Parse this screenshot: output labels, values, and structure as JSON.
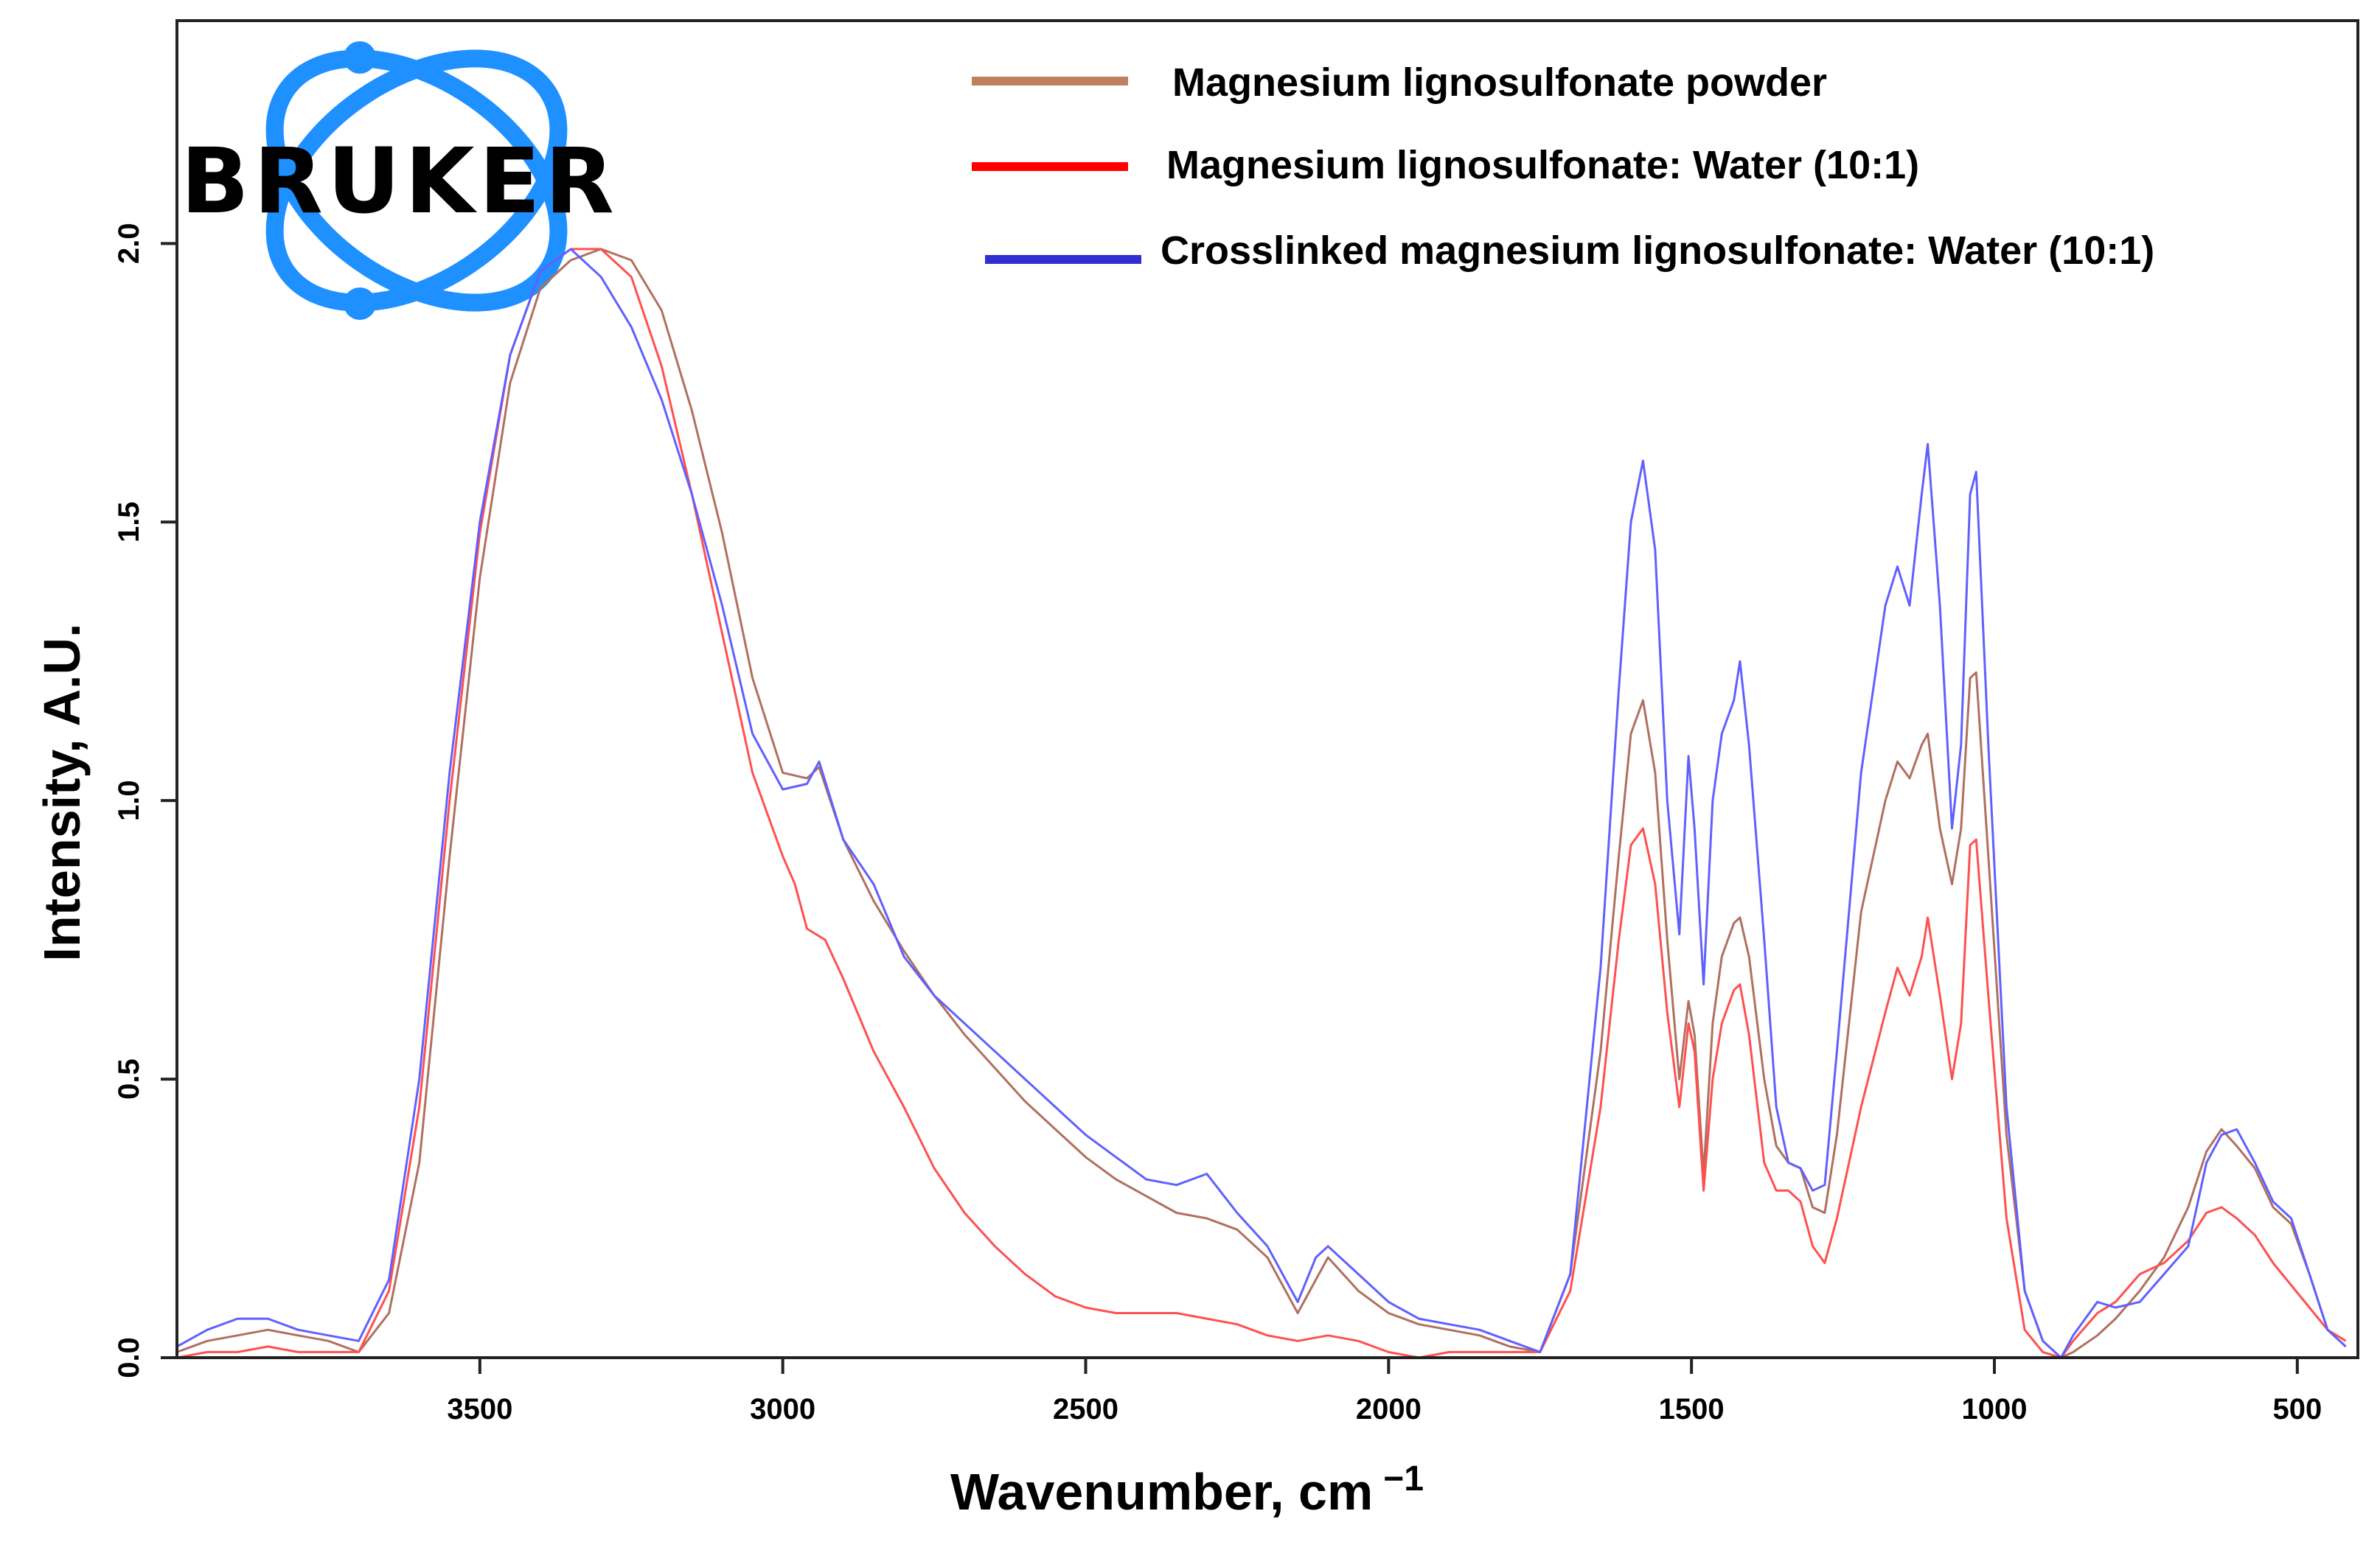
{
  "chart_data": {
    "type": "line",
    "title": "",
    "xlabel": "Wavenumber, cm",
    "xlabel_superscript": "−1",
    "ylabel": "Intensity, A.U.",
    "xlim": [
      4000,
      400
    ],
    "ylim": [
      0,
      2.4
    ],
    "x_ticks": [
      3500,
      3000,
      2500,
      2000,
      1500,
      1000,
      500
    ],
    "y_ticks": [
      "0.0",
      "0.5",
      "1.0",
      "1.5",
      "2.0"
    ],
    "y_tick_values": [
      0,
      0.5,
      1.0,
      1.5,
      2.0
    ],
    "legend_position": "top-right",
    "logo_text": "BRUKER",
    "series": [
      {
        "name": "Magnesium lignosulfonate powder",
        "color": "#b07060",
        "legend_color": "#c08060",
        "points": [
          [
            4000,
            0.01
          ],
          [
            3950,
            0.03
          ],
          [
            3900,
            0.04
          ],
          [
            3850,
            0.05
          ],
          [
            3800,
            0.04
          ],
          [
            3750,
            0.03
          ],
          [
            3700,
            0.01
          ],
          [
            3650,
            0.08
          ],
          [
            3600,
            0.35
          ],
          [
            3550,
            0.9
          ],
          [
            3500,
            1.4
          ],
          [
            3450,
            1.75
          ],
          [
            3400,
            1.92
          ],
          [
            3350,
            1.97
          ],
          [
            3300,
            1.99
          ],
          [
            3250,
            1.97
          ],
          [
            3200,
            1.88
          ],
          [
            3150,
            1.7
          ],
          [
            3100,
            1.48
          ],
          [
            3050,
            1.22
          ],
          [
            3000,
            1.05
          ],
          [
            2960,
            1.04
          ],
          [
            2940,
            1.06
          ],
          [
            2900,
            0.93
          ],
          [
            2850,
            0.82
          ],
          [
            2800,
            0.73
          ],
          [
            2750,
            0.65
          ],
          [
            2700,
            0.58
          ],
          [
            2650,
            0.52
          ],
          [
            2600,
            0.46
          ],
          [
            2550,
            0.41
          ],
          [
            2500,
            0.36
          ],
          [
            2450,
            0.32
          ],
          [
            2400,
            0.29
          ],
          [
            2350,
            0.26
          ],
          [
            2300,
            0.25
          ],
          [
            2250,
            0.23
          ],
          [
            2200,
            0.18
          ],
          [
            2150,
            0.08
          ],
          [
            2120,
            0.14
          ],
          [
            2100,
            0.18
          ],
          [
            2050,
            0.12
          ],
          [
            2000,
            0.08
          ],
          [
            1950,
            0.06
          ],
          [
            1900,
            0.05
          ],
          [
            1850,
            0.04
          ],
          [
            1800,
            0.02
          ],
          [
            1750,
            0.01
          ],
          [
            1700,
            0.15
          ],
          [
            1650,
            0.55
          ],
          [
            1620,
            0.9
          ],
          [
            1600,
            1.12
          ],
          [
            1580,
            1.18
          ],
          [
            1560,
            1.05
          ],
          [
            1540,
            0.75
          ],
          [
            1520,
            0.5
          ],
          [
            1505,
            0.64
          ],
          [
            1495,
            0.58
          ],
          [
            1480,
            0.33
          ],
          [
            1465,
            0.6
          ],
          [
            1450,
            0.72
          ],
          [
            1430,
            0.78
          ],
          [
            1420,
            0.79
          ],
          [
            1405,
            0.72
          ],
          [
            1380,
            0.5
          ],
          [
            1360,
            0.38
          ],
          [
            1340,
            0.35
          ],
          [
            1320,
            0.34
          ],
          [
            1300,
            0.27
          ],
          [
            1280,
            0.26
          ],
          [
            1260,
            0.4
          ],
          [
            1220,
            0.8
          ],
          [
            1180,
            1.0
          ],
          [
            1160,
            1.07
          ],
          [
            1140,
            1.04
          ],
          [
            1120,
            1.1
          ],
          [
            1110,
            1.12
          ],
          [
            1090,
            0.95
          ],
          [
            1070,
            0.85
          ],
          [
            1055,
            0.95
          ],
          [
            1040,
            1.22
          ],
          [
            1030,
            1.23
          ],
          [
            1010,
            0.9
          ],
          [
            980,
            0.4
          ],
          [
            950,
            0.12
          ],
          [
            920,
            0.03
          ],
          [
            890,
            0.0
          ],
          [
            870,
            0.01
          ],
          [
            830,
            0.04
          ],
          [
            800,
            0.07
          ],
          [
            760,
            0.12
          ],
          [
            720,
            0.18
          ],
          [
            680,
            0.27
          ],
          [
            650,
            0.37
          ],
          [
            625,
            0.41
          ],
          [
            600,
            0.38
          ],
          [
            570,
            0.34
          ],
          [
            540,
            0.27
          ],
          [
            510,
            0.24
          ],
          [
            480,
            0.15
          ],
          [
            450,
            0.05
          ],
          [
            420,
            0.02
          ]
        ]
      },
      {
        "name": "Magnesium lignosulfonate: Water (10:1)",
        "color": "#ff5050",
        "legend_color": "#ff0000",
        "points": [
          [
            4000,
            0.0
          ],
          [
            3950,
            0.01
          ],
          [
            3900,
            0.01
          ],
          [
            3850,
            0.02
          ],
          [
            3800,
            0.01
          ],
          [
            3750,
            0.01
          ],
          [
            3700,
            0.01
          ],
          [
            3650,
            0.12
          ],
          [
            3600,
            0.45
          ],
          [
            3550,
            1.0
          ],
          [
            3500,
            1.48
          ],
          [
            3450,
            1.8
          ],
          [
            3400,
            1.95
          ],
          [
            3350,
            1.99
          ],
          [
            3300,
            1.99
          ],
          [
            3250,
            1.94
          ],
          [
            3200,
            1.78
          ],
          [
            3150,
            1.55
          ],
          [
            3100,
            1.3
          ],
          [
            3050,
            1.05
          ],
          [
            3000,
            0.9
          ],
          [
            2980,
            0.85
          ],
          [
            2960,
            0.77
          ],
          [
            2930,
            0.75
          ],
          [
            2900,
            0.68
          ],
          [
            2850,
            0.55
          ],
          [
            2800,
            0.45
          ],
          [
            2750,
            0.34
          ],
          [
            2700,
            0.26
          ],
          [
            2650,
            0.2
          ],
          [
            2600,
            0.15
          ],
          [
            2550,
            0.11
          ],
          [
            2500,
            0.09
          ],
          [
            2450,
            0.08
          ],
          [
            2400,
            0.08
          ],
          [
            2350,
            0.08
          ],
          [
            2300,
            0.07
          ],
          [
            2250,
            0.06
          ],
          [
            2200,
            0.04
          ],
          [
            2150,
            0.03
          ],
          [
            2100,
            0.04
          ],
          [
            2050,
            0.03
          ],
          [
            2000,
            0.01
          ],
          [
            1950,
            0.0
          ],
          [
            1900,
            0.01
          ],
          [
            1850,
            0.01
          ],
          [
            1800,
            0.01
          ],
          [
            1750,
            0.01
          ],
          [
            1700,
            0.12
          ],
          [
            1650,
            0.45
          ],
          [
            1620,
            0.75
          ],
          [
            1600,
            0.92
          ],
          [
            1580,
            0.95
          ],
          [
            1560,
            0.85
          ],
          [
            1540,
            0.62
          ],
          [
            1520,
            0.45
          ],
          [
            1505,
            0.6
          ],
          [
            1495,
            0.55
          ],
          [
            1480,
            0.3
          ],
          [
            1465,
            0.5
          ],
          [
            1450,
            0.6
          ],
          [
            1430,
            0.66
          ],
          [
            1420,
            0.67
          ],
          [
            1405,
            0.58
          ],
          [
            1380,
            0.35
          ],
          [
            1360,
            0.3
          ],
          [
            1340,
            0.3
          ],
          [
            1320,
            0.28
          ],
          [
            1300,
            0.2
          ],
          [
            1280,
            0.17
          ],
          [
            1260,
            0.25
          ],
          [
            1220,
            0.45
          ],
          [
            1180,
            0.62
          ],
          [
            1160,
            0.7
          ],
          [
            1140,
            0.65
          ],
          [
            1120,
            0.72
          ],
          [
            1110,
            0.79
          ],
          [
            1090,
            0.65
          ],
          [
            1070,
            0.5
          ],
          [
            1055,
            0.6
          ],
          [
            1040,
            0.92
          ],
          [
            1030,
            0.93
          ],
          [
            1010,
            0.65
          ],
          [
            980,
            0.25
          ],
          [
            950,
            0.05
          ],
          [
            920,
            0.01
          ],
          [
            890,
            0.0
          ],
          [
            870,
            0.03
          ],
          [
            830,
            0.08
          ],
          [
            800,
            0.1
          ],
          [
            760,
            0.15
          ],
          [
            720,
            0.17
          ],
          [
            680,
            0.21
          ],
          [
            650,
            0.26
          ],
          [
            625,
            0.27
          ],
          [
            600,
            0.25
          ],
          [
            570,
            0.22
          ],
          [
            540,
            0.17
          ],
          [
            510,
            0.13
          ],
          [
            480,
            0.09
          ],
          [
            450,
            0.05
          ],
          [
            420,
            0.03
          ]
        ]
      },
      {
        "name": "Crosslinked magnesium lignosulfonate: Water (10:1)",
        "color": "#6060ff",
        "legend_color": "#3030d0",
        "points": [
          [
            4000,
            0.02
          ],
          [
            3950,
            0.05
          ],
          [
            3900,
            0.07
          ],
          [
            3850,
            0.07
          ],
          [
            3800,
            0.05
          ],
          [
            3750,
            0.04
          ],
          [
            3700,
            0.03
          ],
          [
            3650,
            0.14
          ],
          [
            3600,
            0.5
          ],
          [
            3550,
            1.05
          ],
          [
            3500,
            1.5
          ],
          [
            3450,
            1.8
          ],
          [
            3400,
            1.95
          ],
          [
            3350,
            1.99
          ],
          [
            3300,
            1.94
          ],
          [
            3250,
            1.85
          ],
          [
            3200,
            1.72
          ],
          [
            3150,
            1.55
          ],
          [
            3100,
            1.35
          ],
          [
            3050,
            1.12
          ],
          [
            3000,
            1.02
          ],
          [
            2960,
            1.03
          ],
          [
            2940,
            1.07
          ],
          [
            2900,
            0.93
          ],
          [
            2850,
            0.85
          ],
          [
            2800,
            0.72
          ],
          [
            2750,
            0.65
          ],
          [
            2700,
            0.6
          ],
          [
            2650,
            0.55
          ],
          [
            2600,
            0.5
          ],
          [
            2550,
            0.45
          ],
          [
            2500,
            0.4
          ],
          [
            2450,
            0.36
          ],
          [
            2400,
            0.32
          ],
          [
            2350,
            0.31
          ],
          [
            2300,
            0.33
          ],
          [
            2250,
            0.26
          ],
          [
            2200,
            0.2
          ],
          [
            2150,
            0.1
          ],
          [
            2120,
            0.18
          ],
          [
            2100,
            0.2
          ],
          [
            2050,
            0.15
          ],
          [
            2000,
            0.1
          ],
          [
            1950,
            0.07
          ],
          [
            1900,
            0.06
          ],
          [
            1850,
            0.05
          ],
          [
            1800,
            0.03
          ],
          [
            1750,
            0.01
          ],
          [
            1700,
            0.15
          ],
          [
            1650,
            0.7
          ],
          [
            1620,
            1.2
          ],
          [
            1600,
            1.5
          ],
          [
            1580,
            1.61
          ],
          [
            1560,
            1.45
          ],
          [
            1540,
            1.0
          ],
          [
            1520,
            0.76
          ],
          [
            1505,
            1.08
          ],
          [
            1495,
            0.95
          ],
          [
            1480,
            0.67
          ],
          [
            1465,
            1.0
          ],
          [
            1450,
            1.12
          ],
          [
            1430,
            1.18
          ],
          [
            1420,
            1.25
          ],
          [
            1405,
            1.1
          ],
          [
            1380,
            0.75
          ],
          [
            1360,
            0.45
          ],
          [
            1340,
            0.35
          ],
          [
            1320,
            0.34
          ],
          [
            1300,
            0.3
          ],
          [
            1280,
            0.31
          ],
          [
            1260,
            0.55
          ],
          [
            1220,
            1.05
          ],
          [
            1180,
            1.35
          ],
          [
            1160,
            1.42
          ],
          [
            1140,
            1.35
          ],
          [
            1120,
            1.55
          ],
          [
            1110,
            1.64
          ],
          [
            1090,
            1.35
          ],
          [
            1070,
            0.95
          ],
          [
            1055,
            1.1
          ],
          [
            1040,
            1.55
          ],
          [
            1030,
            1.59
          ],
          [
            1010,
            1.1
          ],
          [
            980,
            0.45
          ],
          [
            950,
            0.12
          ],
          [
            920,
            0.03
          ],
          [
            890,
            0.0
          ],
          [
            870,
            0.04
          ],
          [
            830,
            0.1
          ],
          [
            800,
            0.09
          ],
          [
            760,
            0.1
          ],
          [
            720,
            0.15
          ],
          [
            680,
            0.2
          ],
          [
            650,
            0.35
          ],
          [
            625,
            0.4
          ],
          [
            600,
            0.41
          ],
          [
            570,
            0.35
          ],
          [
            540,
            0.28
          ],
          [
            510,
            0.25
          ],
          [
            480,
            0.15
          ],
          [
            450,
            0.05
          ],
          [
            420,
            0.02
          ]
        ]
      }
    ]
  }
}
